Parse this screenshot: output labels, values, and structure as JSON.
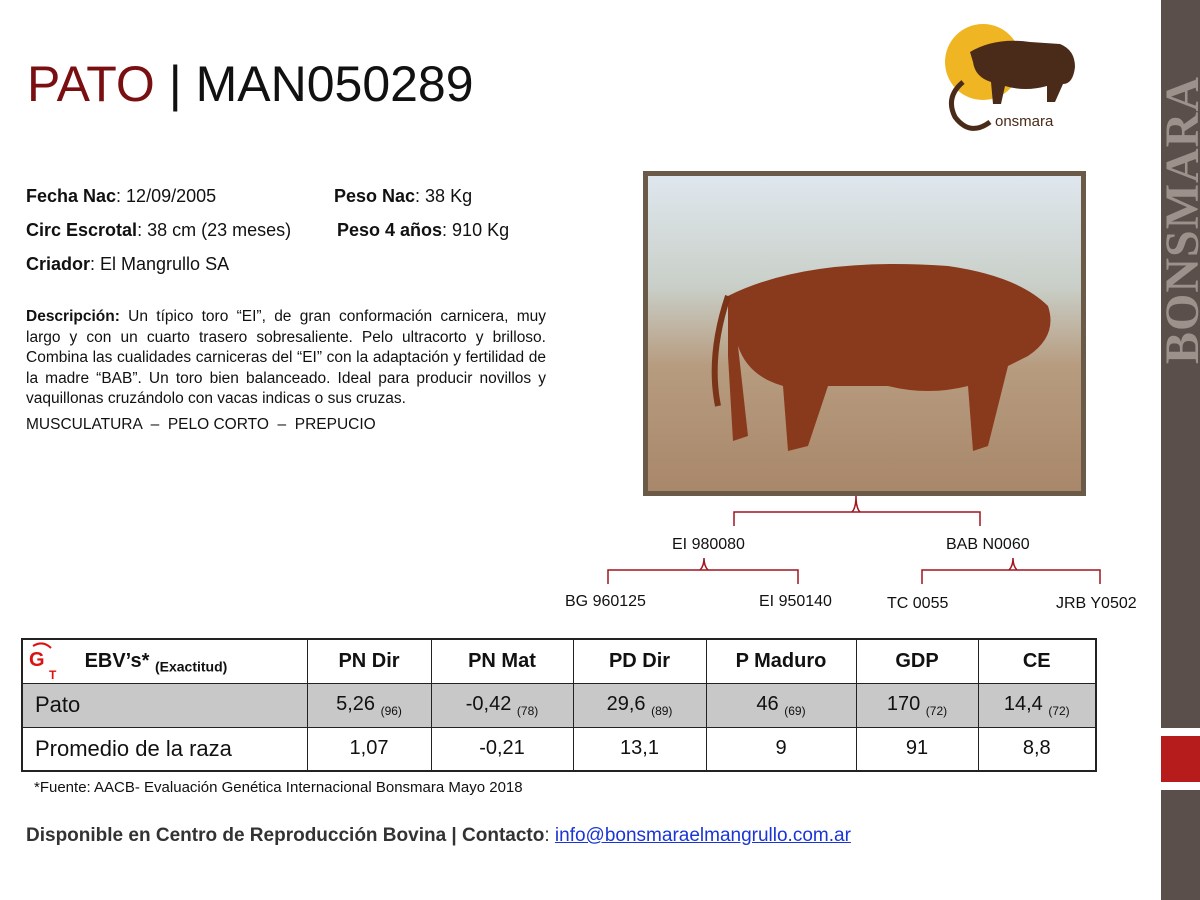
{
  "title": {
    "name": "PATO",
    "separator": " | ",
    "code": "MAN050289"
  },
  "logo": {
    "text": "Bonsmara"
  },
  "info": {
    "fecha_label": "Fecha Nac",
    "fecha": ": 12/09/2005",
    "peso_nac_label": "Peso Nac",
    "peso_nac": ": 38 Kg",
    "circ_label": "Circ Escrotal",
    "circ": ": 38 cm (23 meses)",
    "peso4_label": "Peso 4 años",
    "peso4": ": 910 Kg",
    "criador_label": "Criador",
    "criador": ": El Mangrullo SA"
  },
  "description": {
    "label": "Descripción:",
    "text": " Un típico toro “EI”, de gran conformación carnicera, muy largo y con un cuarto trasero sobresaliente. Pelo ultracorto y brilloso. Combina las cualidades carniceras del “EI” con la adaptación y fertilidad de la madre “BAB”. Un toro bien balanceado. Ideal para producir novillos y vaquillonas cruzándolo con vacas indicas o sus cruzas."
  },
  "traits": "MUSCULATURA  –  PELO CORTO  –  PREPUCIO",
  "pedigree": {
    "sire": "EI 980080",
    "dam": "BAB N0060",
    "sire_sire": "BG 960125",
    "sire_dam": "EI 950140",
    "dam_sire": "TC 0055",
    "dam_dam": "JRB Y0502"
  },
  "side_banner": "BONSMARA",
  "table": {
    "header": {
      "label": "EBV’s*",
      "sub": "(Exactitud)",
      "cols": [
        "PN Dir",
        "PN Mat",
        "PD Dir",
        "P Maduro",
        "GDP",
        "CE"
      ]
    },
    "rows": [
      {
        "label": "Pato",
        "values": [
          [
            "5,26",
            "(96)"
          ],
          [
            "-0,42",
            "(78)"
          ],
          [
            "29,6",
            "(89)"
          ],
          [
            "46",
            "(69)"
          ],
          [
            "170",
            "(72)"
          ],
          [
            "14,4",
            "(72)"
          ]
        ]
      },
      {
        "label": "Promedio de la raza",
        "values": [
          "1,07",
          "-0,21",
          "13,1",
          "9",
          "91",
          "8,8"
        ]
      }
    ]
  },
  "source": "*Fuente: AACB- Evaluación Genética Internacional Bonsmara Mayo 2018",
  "footer": {
    "text": "Disponible en Centro de Reproducción Bovina | Contacto",
    ":": ": ",
    "email": "info@bonsmaraelmangrullo.com.ar"
  },
  "colors": {
    "title_red": "#7a0f12",
    "accent_red": "#b71c1c",
    "side_gray": "#5a4f4a",
    "link": "#1a35d6"
  }
}
